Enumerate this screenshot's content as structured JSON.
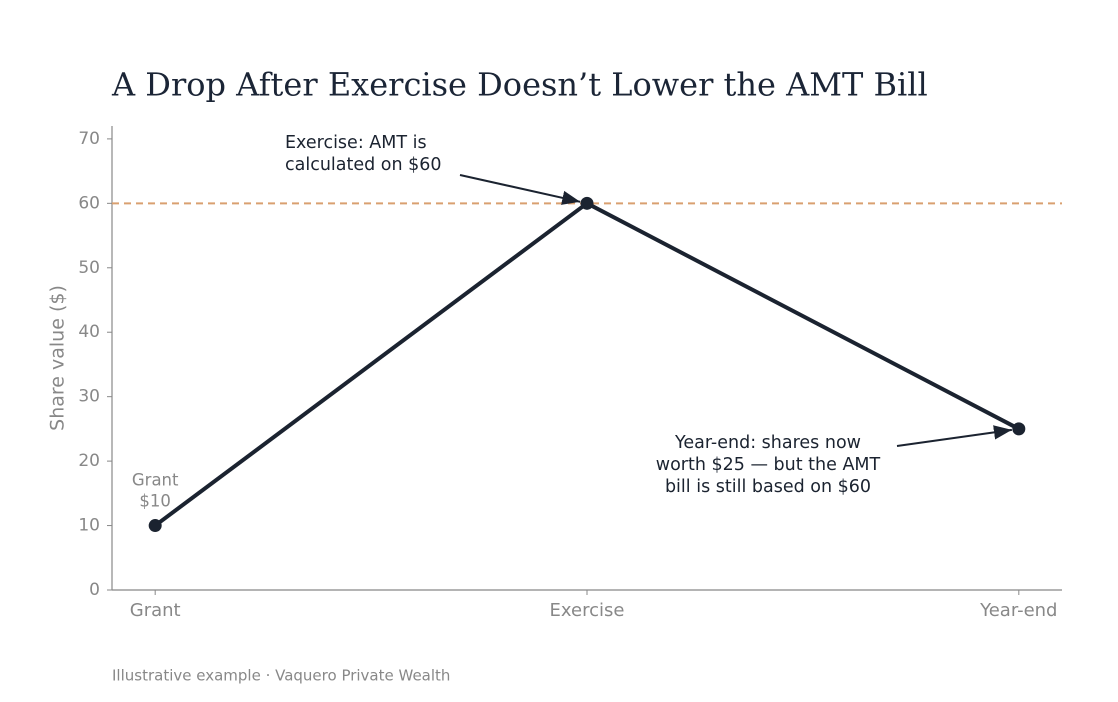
{
  "chart_data": {
    "type": "line",
    "title": "A Drop After Exercise Doesn’t Lower the AMT Bill",
    "y_label": "Share value ($)",
    "footer": "Illustrative example · Vaquero Private Wealth",
    "categories": [
      "Grant",
      "Exercise",
      "Year-end"
    ],
    "values": [
      10,
      60,
      25
    ],
    "color": "#1b2330",
    "ylim": [
      0,
      72
    ],
    "yticks": [
      0,
      10,
      20,
      30,
      40,
      50,
      60,
      70
    ],
    "reference_line": {
      "value": 60,
      "color": "#d9a070"
    },
    "annotations": [
      {
        "lines": [
          "Grant",
          "$10"
        ],
        "point": 0
      },
      {
        "lines": [
          "Exercise: AMT is",
          "calculated on $60"
        ],
        "point": 1
      },
      {
        "lines": [
          "Year-end: shares now",
          "worth $25 — but the AMT",
          "bill is still based on $60"
        ],
        "point": 2
      }
    ]
  }
}
